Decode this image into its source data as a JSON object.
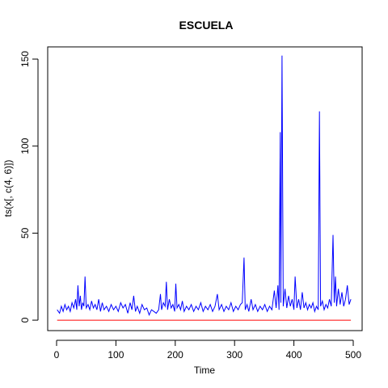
{
  "chart_data": {
    "type": "line",
    "title": "ESCUELA",
    "xlabel": "Time",
    "ylabel": "ts(x[, c(4, 6)])",
    "xlim": [
      -15,
      515
    ],
    "ylim": [
      -6,
      157
    ],
    "x_ticks": [
      0,
      100,
      200,
      300,
      400,
      500
    ],
    "y_ticks": [
      0,
      50,
      100,
      150
    ],
    "grid": false,
    "series": [
      {
        "color": "#0000ff",
        "points": [
          [
            1,
            6
          ],
          [
            5,
            4
          ],
          [
            8,
            8
          ],
          [
            11,
            5
          ],
          [
            14,
            9
          ],
          [
            17,
            6
          ],
          [
            20,
            8
          ],
          [
            23,
            5
          ],
          [
            26,
            10
          ],
          [
            29,
            7
          ],
          [
            32,
            12
          ],
          [
            34,
            6
          ],
          [
            36,
            20
          ],
          [
            38,
            8
          ],
          [
            40,
            14
          ],
          [
            42,
            6
          ],
          [
            44,
            10
          ],
          [
            46,
            8
          ],
          [
            48,
            25
          ],
          [
            50,
            7
          ],
          [
            53,
            9
          ],
          [
            56,
            6
          ],
          [
            59,
            11
          ],
          [
            62,
            7
          ],
          [
            65,
            9
          ],
          [
            68,
            6
          ],
          [
            71,
            12
          ],
          [
            74,
            5
          ],
          [
            77,
            10
          ],
          [
            80,
            6
          ],
          [
            84,
            8
          ],
          [
            88,
            5
          ],
          [
            92,
            9
          ],
          [
            96,
            6
          ],
          [
            100,
            8
          ],
          [
            104,
            5
          ],
          [
            108,
            10
          ],
          [
            112,
            7
          ],
          [
            116,
            9
          ],
          [
            120,
            4
          ],
          [
            124,
            10
          ],
          [
            127,
            6
          ],
          [
            130,
            14
          ],
          [
            133,
            5
          ],
          [
            136,
            8
          ],
          [
            140,
            4
          ],
          [
            144,
            9
          ],
          [
            148,
            6
          ],
          [
            152,
            7
          ],
          [
            156,
            3
          ],
          [
            160,
            6
          ],
          [
            164,
            5
          ],
          [
            168,
            4
          ],
          [
            172,
            6
          ],
          [
            175,
            15
          ],
          [
            177,
            6
          ],
          [
            180,
            10
          ],
          [
            183,
            8
          ],
          [
            185,
            22
          ],
          [
            187,
            6
          ],
          [
            190,
            12
          ],
          [
            193,
            7
          ],
          [
            196,
            9
          ],
          [
            199,
            5
          ],
          [
            201,
            21
          ],
          [
            203,
            7
          ],
          [
            206,
            9
          ],
          [
            209,
            6
          ],
          [
            212,
            11
          ],
          [
            215,
            5
          ],
          [
            219,
            8
          ],
          [
            223,
            6
          ],
          [
            227,
            9
          ],
          [
            231,
            5
          ],
          [
            235,
            8
          ],
          [
            239,
            6
          ],
          [
            243,
            10
          ],
          [
            247,
            5
          ],
          [
            251,
            8
          ],
          [
            255,
            6
          ],
          [
            259,
            9
          ],
          [
            263,
            5
          ],
          [
            267,
            8
          ],
          [
            271,
            15
          ],
          [
            274,
            6
          ],
          [
            278,
            9
          ],
          [
            282,
            5
          ],
          [
            286,
            8
          ],
          [
            290,
            6
          ],
          [
            294,
            10
          ],
          [
            298,
            5
          ],
          [
            302,
            8
          ],
          [
            306,
            6
          ],
          [
            310,
            9
          ],
          [
            313,
            10
          ],
          [
            316,
            36
          ],
          [
            318,
            6
          ],
          [
            321,
            9
          ],
          [
            324,
            5
          ],
          [
            328,
            12
          ],
          [
            331,
            6
          ],
          [
            335,
            9
          ],
          [
            339,
            5
          ],
          [
            343,
            8
          ],
          [
            347,
            6
          ],
          [
            351,
            9
          ],
          [
            355,
            5
          ],
          [
            359,
            8
          ],
          [
            363,
            6
          ],
          [
            367,
            17
          ],
          [
            370,
            7
          ],
          [
            373,
            20
          ],
          [
            375,
            6
          ],
          [
            377,
            108
          ],
          [
            378,
            10
          ],
          [
            380,
            152
          ],
          [
            382,
            8
          ],
          [
            385,
            18
          ],
          [
            388,
            7
          ],
          [
            391,
            14
          ],
          [
            394,
            8
          ],
          [
            397,
            12
          ],
          [
            400,
            6
          ],
          [
            402,
            25
          ],
          [
            405,
            7
          ],
          [
            408,
            12
          ],
          [
            411,
            6
          ],
          [
            414,
            16
          ],
          [
            417,
            7
          ],
          [
            420,
            10
          ],
          [
            423,
            6
          ],
          [
            426,
            9
          ],
          [
            429,
            7
          ],
          [
            432,
            10
          ],
          [
            435,
            5
          ],
          [
            438,
            8
          ],
          [
            441,
            6
          ],
          [
            443,
            120
          ],
          [
            445,
            8
          ],
          [
            448,
            11
          ],
          [
            451,
            6
          ],
          [
            454,
            9
          ],
          [
            457,
            7
          ],
          [
            460,
            12
          ],
          [
            463,
            8
          ],
          [
            466,
            49
          ],
          [
            468,
            10
          ],
          [
            470,
            25
          ],
          [
            472,
            8
          ],
          [
            475,
            18
          ],
          [
            478,
            9
          ],
          [
            481,
            16
          ],
          [
            484,
            8
          ],
          [
            487,
            12
          ],
          [
            490,
            20
          ],
          [
            493,
            9
          ],
          [
            496,
            12
          ]
        ]
      },
      {
        "color": "#ff0000",
        "points": [
          [
            1,
            0
          ],
          [
            100,
            0
          ],
          [
            200,
            0
          ],
          [
            300,
            0
          ],
          [
            400,
            0
          ],
          [
            496,
            0
          ]
        ]
      }
    ]
  }
}
